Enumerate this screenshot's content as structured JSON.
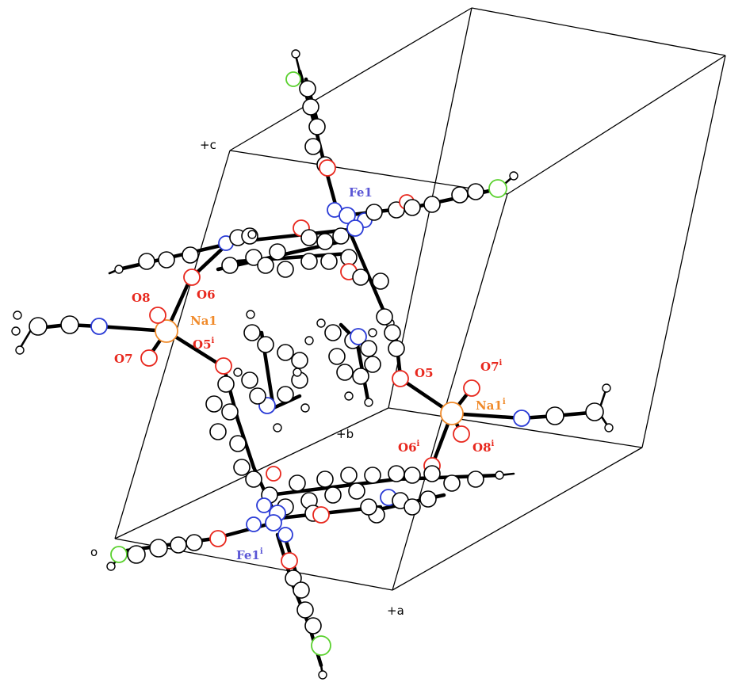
{
  "axes": {
    "c": "+c",
    "b": "+b",
    "a": "+a",
    "origin": "o"
  },
  "labels": {
    "fe1": {
      "main": "Fe1",
      "sup": "",
      "color": "#5a56d6"
    },
    "fe1i": {
      "main": "Fe1",
      "sup": "i",
      "color": "#5a56d6"
    },
    "na1": {
      "main": "Na1",
      "sup": "",
      "color": "#f08a2a"
    },
    "na1i": {
      "main": "Na1",
      "sup": "i",
      "color": "#f08a2a"
    },
    "o5": {
      "main": "O5",
      "sup": "",
      "color": "#e8281e"
    },
    "o5i": {
      "main": "O5",
      "sup": "i",
      "color": "#e8281e"
    },
    "o6": {
      "main": "O6",
      "sup": "",
      "color": "#e8281e"
    },
    "o6i": {
      "main": "O6",
      "sup": "i",
      "color": "#e8281e"
    },
    "o7": {
      "main": "O7",
      "sup": "",
      "color": "#e8281e"
    },
    "o7i": {
      "main": "O7",
      "sup": "i",
      "color": "#e8281e"
    },
    "o8": {
      "main": "O8",
      "sup": "",
      "color": "#e8281e"
    },
    "o8i": {
      "main": "O8",
      "sup": "i",
      "color": "#e8281e"
    }
  }
}
